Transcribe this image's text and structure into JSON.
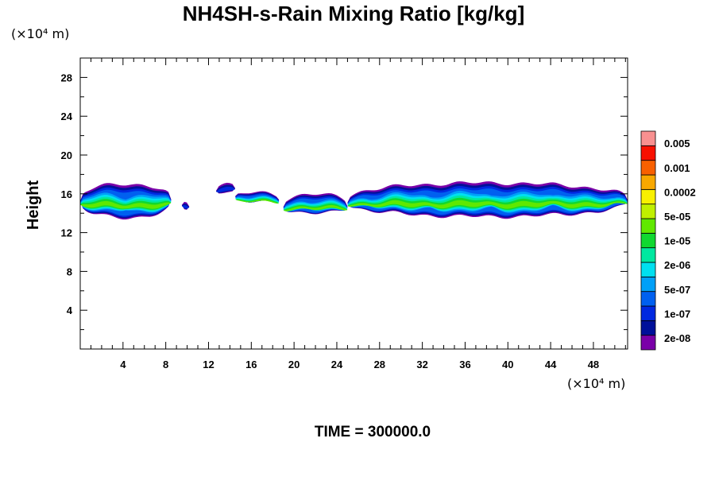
{
  "chart_data": {
    "type": "heatmap",
    "title": "NH4SH-s-Rain Mixing Ratio [kg/kg]",
    "ylabel": "Height",
    "x_unit": "(×10⁴ m)",
    "y_unit": "(×10⁴ m)",
    "footer": "TIME = 300000.0",
    "xlim": [
      0,
      51.2
    ],
    "ylim": [
      0,
      30
    ],
    "x_ticks": [
      4,
      8,
      12,
      16,
      20,
      24,
      28,
      32,
      36,
      40,
      44,
      48
    ],
    "y_ticks": [
      4,
      8,
      12,
      16,
      20,
      24,
      28
    ],
    "x_tick_labels": [
      "4",
      "8",
      "12",
      "16",
      "20",
      "24",
      "28",
      "32",
      "36",
      "40",
      "44",
      "48"
    ],
    "y_tick_labels": [
      "4",
      "8",
      "12",
      "16",
      "20",
      "24",
      "28"
    ],
    "colorbar": {
      "colors": [
        "#7a00a8",
        "#00109a",
        "#0028e0",
        "#0060f0",
        "#00a0f8",
        "#00e0f0",
        "#00e8a0",
        "#10d830",
        "#60e800",
        "#c0f000",
        "#f8f000",
        "#f8a800",
        "#f86000",
        "#f81000",
        "#f89090"
      ],
      "labels": [
        "2e-08",
        "1e-07",
        "5e-07",
        "2e-06",
        "1e-05",
        "5e-05",
        "0.0002",
        "0.001",
        "0.005"
      ]
    },
    "cloud_bands": [
      {
        "x0": 0.0,
        "x1": 8.5,
        "y_center": 15.2,
        "thickness": 3.5
      },
      {
        "x0": 9.5,
        "x1": 10.2,
        "y_center": 14.8,
        "thickness": 0.8
      },
      {
        "x0": 12.7,
        "x1": 14.5,
        "y_center": 16.5,
        "thickness": 1.0
      },
      {
        "x0": 14.5,
        "x1": 18.6,
        "y_center": 15.6,
        "thickness": 1.0
      },
      {
        "x0": 19.0,
        "x1": 25.0,
        "y_center": 14.9,
        "thickness": 2.0
      },
      {
        "x0": 25.0,
        "x1": 51.2,
        "y_center": 15.3,
        "thickness": 3.5
      }
    ]
  }
}
